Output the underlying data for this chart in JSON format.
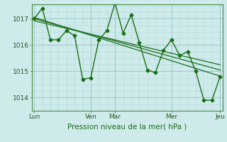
{
  "background_color": "#ceeaea",
  "grid_color_major": "#a0cccc",
  "grid_color_minor": "#b8dddd",
  "line_color": "#1a6e1a",
  "xlabel": "Pression niveau de la mer( hPa )",
  "yticks": [
    1014,
    1015,
    1016,
    1017
  ],
  "ylim": [
    1013.5,
    1017.55
  ],
  "xtick_labels": [
    "Lun",
    "Ven",
    "Mar",
    "Mer",
    "Jeu"
  ],
  "xtick_positions": [
    0,
    7,
    10,
    17,
    23
  ],
  "xlim": [
    -0.3,
    23.3
  ],
  "series1_x": [
    0,
    1,
    2,
    3,
    4,
    5,
    6,
    7,
    8,
    9,
    10,
    11,
    12,
    13,
    14,
    15,
    16,
    17,
    18,
    19,
    20,
    21,
    22,
    23
  ],
  "series1_y": [
    1017.0,
    1017.4,
    1016.2,
    1016.2,
    1016.55,
    1016.35,
    1014.7,
    1014.75,
    1016.2,
    1016.55,
    1017.6,
    1016.45,
    1017.15,
    1016.1,
    1015.05,
    1014.95,
    1015.8,
    1016.2,
    1015.6,
    1015.75,
    1015.0,
    1013.9,
    1013.9,
    1014.8
  ],
  "trend1_x": [
    0,
    23
  ],
  "trend1_y": [
    1017.05,
    1014.82
  ],
  "trend2_x": [
    0,
    23
  ],
  "trend2_y": [
    1017.0,
    1015.05
  ],
  "trend3_x": [
    0,
    23
  ],
  "trend3_y": [
    1016.92,
    1015.25
  ],
  "figsize": [
    3.2,
    2.0
  ],
  "dpi": 100
}
